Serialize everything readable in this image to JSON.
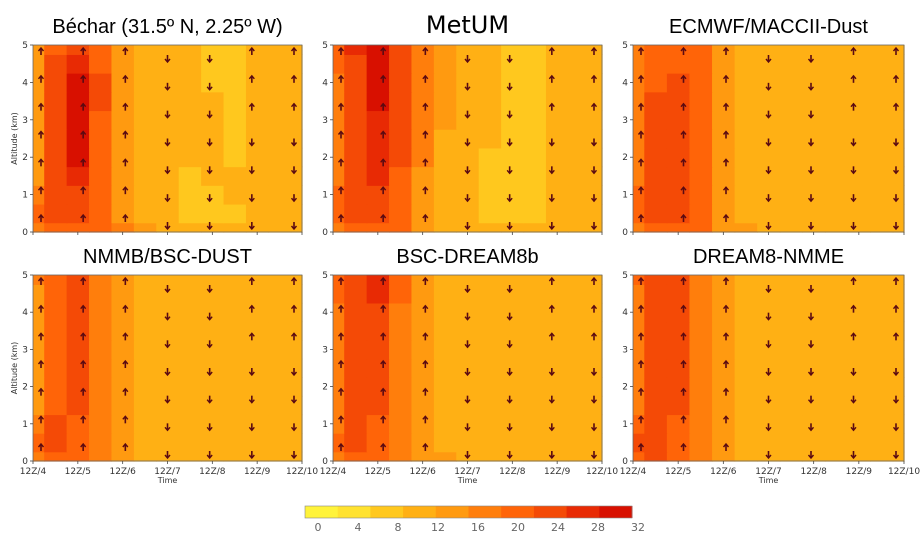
{
  "chart_data": {
    "type": "heatmap",
    "panels": [
      {
        "title": "Béchar (31.5º N, 2.25º W)",
        "big": false
      },
      {
        "title": "MetUM",
        "big": true
      },
      {
        "title": "ECMWF/MACCII-Dust",
        "big": false
      },
      {
        "title": "NMMB/BSC-DUST",
        "big": false
      },
      {
        "title": "BSC-DREAM8b",
        "big": false
      },
      {
        "title": "DREAM8-NMME",
        "big": false
      }
    ],
    "xlabel": "Time",
    "ylabel": "Altitude (km)",
    "x_ticks": [
      "12Z/4",
      "12Z/5",
      "12Z/6",
      "12Z/7",
      "12Z/8",
      "12Z/9",
      "12Z/10"
    ],
    "y_ticks": [
      "0",
      "1",
      "2",
      "3",
      "4",
      "5"
    ],
    "ylim": [
      0,
      5
    ],
    "colorbar": {
      "ticks": [
        "0",
        "4",
        "8",
        "12",
        "16",
        "20",
        "24",
        "28",
        "32"
      ],
      "colors": [
        "#fff33a",
        "#ffe230",
        "#ffc81e",
        "#ffb014",
        "#ff9a10",
        "#ff7e0c",
        "#ff6408",
        "#f44a06",
        "#e82a04",
        "#d81000"
      ]
    },
    "x_values": [
      0,
      0.5,
      1,
      1.5,
      2,
      2.5,
      3,
      3.5,
      4,
      4.5,
      5,
      5.5,
      6
    ],
    "y_values": [
      0,
      0.5,
      1,
      1.5,
      2,
      2.5,
      3,
      3.5,
      4,
      4.5,
      5
    ],
    "values": [
      [
        [
          18,
          22,
          22,
          20,
          18,
          14,
          12,
          12,
          12,
          12,
          12,
          12,
          12
        ],
        [
          20,
          26,
          24,
          20,
          16,
          12,
          10,
          8,
          8,
          8,
          10,
          10,
          12
        ],
        [
          18,
          26,
          26,
          20,
          16,
          12,
          10,
          8,
          8,
          10,
          10,
          12,
          12
        ],
        [
          16,
          24,
          28,
          22,
          16,
          12,
          10,
          8,
          10,
          10,
          10,
          12,
          12
        ],
        [
          16,
          24,
          30,
          22,
          16,
          12,
          10,
          10,
          10,
          8,
          10,
          12,
          12
        ],
        [
          16,
          24,
          30,
          22,
          16,
          12,
          10,
          10,
          10,
          8,
          10,
          12,
          12
        ],
        [
          16,
          24,
          30,
          22,
          16,
          12,
          10,
          10,
          10,
          8,
          10,
          12,
          12
        ],
        [
          16,
          24,
          30,
          24,
          16,
          12,
          10,
          10,
          10,
          8,
          10,
          12,
          12
        ],
        [
          16,
          24,
          30,
          24,
          16,
          12,
          10,
          10,
          8,
          8,
          10,
          12,
          12
        ],
        [
          16,
          24,
          28,
          22,
          16,
          12,
          10,
          10,
          8,
          8,
          10,
          12,
          12
        ],
        [
          16,
          22,
          26,
          20,
          16,
          12,
          10,
          10,
          8,
          8,
          10,
          12,
          12
        ]
      ],
      [
        [
          18,
          22,
          22,
          20,
          16,
          12,
          12,
          12,
          12,
          12,
          12,
          12,
          12
        ],
        [
          22,
          26,
          24,
          20,
          16,
          12,
          10,
          8,
          8,
          8,
          10,
          10,
          12
        ],
        [
          20,
          26,
          26,
          20,
          16,
          12,
          10,
          8,
          8,
          8,
          10,
          12,
          12
        ],
        [
          18,
          26,
          28,
          22,
          16,
          12,
          10,
          8,
          8,
          8,
          10,
          12,
          12
        ],
        [
          18,
          26,
          28,
          24,
          18,
          12,
          10,
          8,
          8,
          8,
          10,
          12,
          12
        ],
        [
          18,
          26,
          28,
          24,
          18,
          12,
          10,
          10,
          8,
          8,
          10,
          12,
          12
        ],
        [
          18,
          26,
          28,
          24,
          18,
          14,
          10,
          10,
          8,
          8,
          10,
          12,
          12
        ],
        [
          18,
          26,
          30,
          24,
          18,
          14,
          10,
          10,
          8,
          8,
          10,
          12,
          12
        ],
        [
          18,
          26,
          30,
          26,
          18,
          14,
          10,
          10,
          8,
          8,
          10,
          12,
          12
        ],
        [
          20,
          26,
          30,
          26,
          18,
          14,
          12,
          10,
          8,
          8,
          10,
          12,
          12
        ],
        [
          22,
          28,
          32,
          26,
          18,
          14,
          12,
          10,
          8,
          8,
          10,
          12,
          12
        ]
      ],
      [
        [
          18,
          22,
          22,
          20,
          16,
          14,
          12,
          12,
          12,
          12,
          12,
          12,
          12
        ],
        [
          22,
          24,
          24,
          20,
          16,
          12,
          10,
          10,
          10,
          10,
          10,
          10,
          12
        ],
        [
          20,
          24,
          24,
          20,
          16,
          12,
          10,
          10,
          10,
          10,
          10,
          10,
          12
        ],
        [
          18,
          24,
          24,
          20,
          16,
          12,
          10,
          10,
          10,
          10,
          10,
          10,
          12
        ],
        [
          18,
          24,
          24,
          20,
          16,
          12,
          10,
          10,
          10,
          10,
          10,
          10,
          12
        ],
        [
          18,
          24,
          24,
          20,
          16,
          12,
          10,
          10,
          10,
          10,
          10,
          10,
          12
        ],
        [
          18,
          24,
          24,
          20,
          16,
          12,
          10,
          10,
          10,
          10,
          10,
          10,
          12
        ],
        [
          18,
          24,
          24,
          20,
          16,
          12,
          10,
          10,
          10,
          10,
          10,
          10,
          12
        ],
        [
          18,
          22,
          24,
          20,
          16,
          12,
          10,
          10,
          10,
          10,
          10,
          10,
          12
        ],
        [
          18,
          22,
          22,
          20,
          16,
          12,
          10,
          10,
          10,
          10,
          10,
          10,
          12
        ],
        [
          18,
          22,
          22,
          20,
          16,
          12,
          12,
          10,
          10,
          10,
          10,
          10,
          12
        ]
      ],
      [
        [
          18,
          22,
          22,
          18,
          14,
          12,
          12,
          12,
          12,
          12,
          12,
          12,
          12
        ],
        [
          20,
          26,
          22,
          18,
          14,
          12,
          10,
          10,
          10,
          10,
          10,
          10,
          12
        ],
        [
          18,
          24,
          22,
          18,
          14,
          12,
          10,
          10,
          10,
          10,
          10,
          10,
          12
        ],
        [
          16,
          22,
          24,
          18,
          14,
          12,
          10,
          10,
          10,
          10,
          10,
          10,
          12
        ],
        [
          16,
          22,
          24,
          18,
          14,
          12,
          10,
          10,
          10,
          10,
          10,
          10,
          12
        ],
        [
          16,
          22,
          24,
          18,
          14,
          12,
          10,
          10,
          10,
          10,
          10,
          10,
          12
        ],
        [
          16,
          22,
          24,
          18,
          14,
          12,
          10,
          10,
          10,
          10,
          10,
          10,
          12
        ],
        [
          16,
          22,
          26,
          18,
          14,
          12,
          10,
          10,
          10,
          10,
          10,
          10,
          12
        ],
        [
          16,
          22,
          26,
          18,
          14,
          12,
          10,
          10,
          10,
          10,
          10,
          10,
          12
        ],
        [
          16,
          22,
          24,
          18,
          14,
          12,
          10,
          10,
          10,
          10,
          10,
          10,
          12
        ],
        [
          18,
          22,
          24,
          18,
          14,
          12,
          10,
          10,
          10,
          10,
          10,
          10,
          12
        ]
      ],
      [
        [
          18,
          22,
          22,
          18,
          16,
          14,
          12,
          12,
          12,
          12,
          12,
          12,
          12
        ],
        [
          20,
          24,
          22,
          18,
          14,
          12,
          10,
          10,
          10,
          10,
          10,
          10,
          12
        ],
        [
          18,
          24,
          22,
          18,
          14,
          12,
          10,
          10,
          10,
          10,
          10,
          10,
          12
        ],
        [
          18,
          24,
          24,
          18,
          14,
          12,
          10,
          10,
          10,
          10,
          10,
          10,
          12
        ],
        [
          18,
          24,
          26,
          18,
          14,
          12,
          10,
          10,
          10,
          10,
          10,
          10,
          12
        ],
        [
          18,
          24,
          26,
          18,
          14,
          12,
          10,
          10,
          10,
          10,
          10,
          10,
          12
        ],
        [
          18,
          24,
          26,
          18,
          14,
          12,
          10,
          10,
          10,
          10,
          10,
          10,
          12
        ],
        [
          18,
          24,
          26,
          18,
          14,
          12,
          10,
          10,
          10,
          10,
          10,
          10,
          12
        ],
        [
          18,
          24,
          26,
          18,
          14,
          12,
          10,
          10,
          10,
          10,
          10,
          10,
          12
        ],
        [
          20,
          26,
          28,
          20,
          14,
          12,
          10,
          10,
          10,
          10,
          10,
          10,
          12
        ],
        [
          22,
          26,
          28,
          20,
          14,
          12,
          10,
          10,
          10,
          10,
          10,
          10,
          12
        ]
      ],
      [
        [
          20,
          24,
          22,
          18,
          14,
          12,
          12,
          12,
          12,
          12,
          12,
          12,
          12
        ],
        [
          24,
          26,
          22,
          18,
          14,
          12,
          10,
          10,
          10,
          10,
          10,
          10,
          12
        ],
        [
          20,
          24,
          22,
          18,
          14,
          12,
          10,
          10,
          10,
          10,
          10,
          10,
          12
        ],
        [
          18,
          24,
          24,
          18,
          14,
          12,
          10,
          10,
          10,
          10,
          10,
          10,
          12
        ],
        [
          18,
          24,
          24,
          18,
          14,
          12,
          10,
          10,
          10,
          10,
          10,
          10,
          12
        ],
        [
          18,
          24,
          24,
          18,
          14,
          12,
          10,
          10,
          10,
          10,
          10,
          10,
          12
        ],
        [
          18,
          24,
          24,
          18,
          14,
          12,
          10,
          10,
          10,
          10,
          10,
          10,
          12
        ],
        [
          18,
          24,
          26,
          18,
          14,
          12,
          10,
          10,
          10,
          10,
          10,
          10,
          12
        ],
        [
          18,
          24,
          26,
          18,
          14,
          12,
          10,
          10,
          10,
          10,
          10,
          10,
          12
        ],
        [
          18,
          24,
          26,
          18,
          14,
          12,
          10,
          10,
          10,
          10,
          10,
          10,
          12
        ],
        [
          20,
          24,
          26,
          18,
          14,
          12,
          10,
          10,
          10,
          10,
          10,
          10,
          12
        ]
      ]
    ]
  }
}
